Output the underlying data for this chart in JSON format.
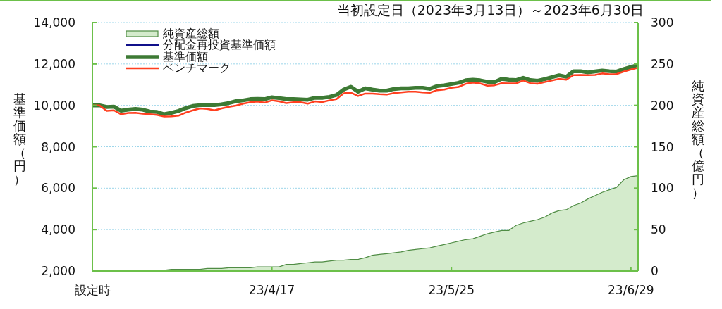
{
  "chart_data": {
    "type": "line",
    "title": "当初設定日（2023年3月13日）～2023年6月30日",
    "ylabel": "基準価額（円）",
    "y2label": "純資産総額（億円）",
    "categories": [
      "設定時",
      null,
      null,
      null,
      null,
      null,
      null,
      null,
      null,
      null,
      null,
      null,
      null,
      null,
      null,
      null,
      null,
      null,
      null,
      null,
      null,
      null,
      null,
      null,
      null,
      "23/4/17",
      null,
      null,
      null,
      null,
      null,
      null,
      null,
      null,
      null,
      null,
      null,
      null,
      null,
      null,
      null,
      null,
      null,
      null,
      null,
      null,
      null,
      null,
      null,
      null,
      "23/5/25",
      null,
      null,
      null,
      null,
      null,
      null,
      null,
      null,
      null,
      null,
      null,
      null,
      null,
      null,
      null,
      null,
      null,
      null,
      null,
      null,
      null,
      null,
      null,
      null,
      "23/6/29",
      null
    ],
    "series": [
      {
        "name": "純資産総額",
        "type": "area",
        "axis": "y2",
        "color": "#d4ebcc",
        "values": [
          0,
          0,
          0,
          0,
          1,
          1,
          1,
          1,
          1,
          1,
          1,
          2,
          2,
          2,
          2,
          2,
          3,
          3,
          3,
          4,
          4,
          4,
          4,
          5,
          5,
          5,
          5,
          8,
          8,
          9,
          10,
          11,
          11,
          12,
          13,
          13,
          14,
          14,
          16,
          19,
          20,
          21,
          22,
          23,
          25,
          26,
          27,
          28,
          30,
          32,
          34,
          36,
          38,
          39,
          42,
          45,
          47,
          49,
          49,
          55,
          58,
          60,
          62,
          65,
          70,
          73,
          74,
          79,
          82,
          87,
          91,
          95,
          98,
          101,
          110,
          114,
          115
        ]
      },
      {
        "name": "分配金再投資基準価額",
        "color": "#10108a",
        "values": [
          null,
          null,
          null,
          null,
          null,
          null,
          null,
          null,
          null,
          null,
          null,
          null,
          null,
          null,
          null,
          null,
          null,
          null,
          null,
          null,
          null,
          null,
          null,
          null,
          null,
          null,
          null,
          null,
          null,
          null,
          null,
          null,
          null,
          null,
          null,
          null,
          null,
          null,
          null,
          null,
          null,
          null,
          null,
          null,
          null,
          null,
          null,
          null,
          null,
          null,
          null,
          null,
          null,
          null,
          null,
          null,
          null,
          null,
          null,
          null,
          null,
          null,
          null,
          null,
          null,
          null,
          null,
          null,
          null,
          null,
          null,
          null,
          null,
          null,
          null,
          null,
          null
        ]
      },
      {
        "name": "基準価額",
        "color": "#3d7a34",
        "values": [
          10000,
          10000,
          9920,
          9940,
          9740,
          9790,
          9830,
          9790,
          9700,
          9680,
          9570,
          9640,
          9730,
          9870,
          9970,
          10010,
          10010,
          10010,
          10050,
          10110,
          10200,
          10240,
          10300,
          10310,
          10300,
          10390,
          10350,
          10300,
          10300,
          10290,
          10270,
          10370,
          10360,
          10410,
          10500,
          10760,
          10900,
          10660,
          10820,
          10760,
          10710,
          10710,
          10790,
          10820,
          10820,
          10850,
          10850,
          10800,
          10930,
          10970,
          11030,
          11090,
          11210,
          11240,
          11210,
          11140,
          11130,
          11280,
          11240,
          11220,
          11330,
          11220,
          11190,
          11270,
          11360,
          11450,
          11380,
          11650,
          11650,
          11590,
          11640,
          11680,
          11650,
          11630,
          11750,
          11850,
          11960
        ]
      },
      {
        "name": "ベンチマーク",
        "color": "#ff3f1f",
        "values": [
          10000,
          10000,
          9730,
          9760,
          9570,
          9630,
          9640,
          9600,
          9570,
          9540,
          9460,
          9470,
          9500,
          9650,
          9760,
          9850,
          9830,
          9760,
          9850,
          9930,
          9990,
          10080,
          10150,
          10180,
          10130,
          10240,
          10190,
          10110,
          10150,
          10150,
          10080,
          10190,
          10160,
          10240,
          10300,
          10580,
          10610,
          10450,
          10570,
          10570,
          10540,
          10520,
          10590,
          10630,
          10660,
          10660,
          10630,
          10610,
          10730,
          10760,
          10850,
          10890,
          11040,
          11100,
          11060,
          10950,
          10970,
          11070,
          11060,
          11060,
          11200,
          11070,
          11040,
          11130,
          11200,
          11280,
          11240,
          11460,
          11470,
          11460,
          11470,
          11540,
          11500,
          11510,
          11630,
          11730,
          11820
        ]
      }
    ],
    "ylim": [
      2000,
      14000
    ],
    "yticks": [
      {
        "value": 2000,
        "label": "2,000"
      },
      {
        "value": 4000,
        "label": "4,000"
      },
      {
        "value": 6000,
        "label": "6,000"
      },
      {
        "value": 8000,
        "label": "8,000"
      },
      {
        "value": 10000,
        "label": "10,000"
      },
      {
        "value": 12000,
        "label": "12,000"
      },
      {
        "value": 14000,
        "label": "14,000"
      }
    ],
    "y2lim": [
      0,
      300
    ],
    "y2ticks": [
      0,
      50,
      100,
      150,
      200,
      250,
      300
    ],
    "grid": "y",
    "legend": "top left"
  }
}
